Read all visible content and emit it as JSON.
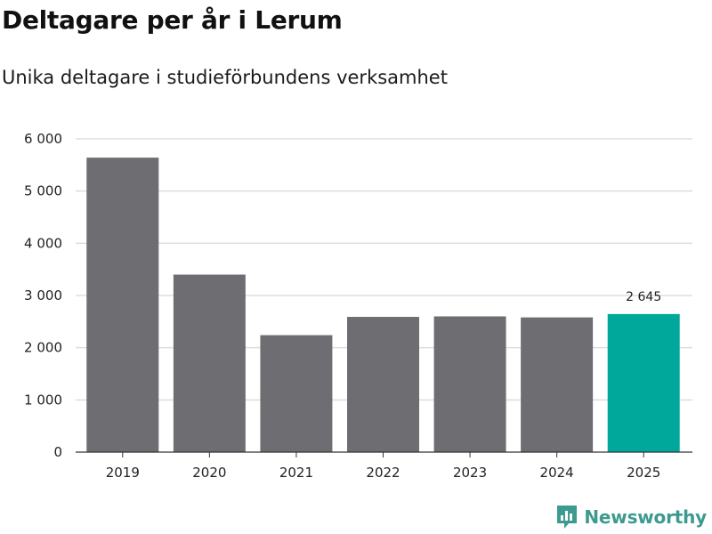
{
  "header": {
    "title": "Deltagare per år i Lerum",
    "subtitle": "Unika deltagare i studieförbundens verksamhet"
  },
  "brand": {
    "name": "Newsworthy",
    "color": "#3d9a8e",
    "icon": "bar-chart-logo-icon"
  },
  "chart_data": {
    "type": "bar",
    "categories": [
      "2019",
      "2020",
      "2021",
      "2022",
      "2023",
      "2024",
      "2025"
    ],
    "values": [
      5640,
      3400,
      2240,
      2590,
      2600,
      2580,
      2645
    ],
    "highlight_index": 6,
    "highlight_label": "2 645",
    "colors": {
      "bar": "#6e6d72",
      "highlight": "#00a79b",
      "grid": "#dddddd",
      "axis": "#333333"
    },
    "ylim": [
      0,
      6000
    ],
    "yticks": [
      0,
      1000,
      2000,
      3000,
      4000,
      5000,
      6000
    ],
    "ytick_labels": [
      "0",
      "1 000",
      "2 000",
      "3 000",
      "4 000",
      "5 000",
      "6 000"
    ],
    "grid": true,
    "legend": "none"
  }
}
